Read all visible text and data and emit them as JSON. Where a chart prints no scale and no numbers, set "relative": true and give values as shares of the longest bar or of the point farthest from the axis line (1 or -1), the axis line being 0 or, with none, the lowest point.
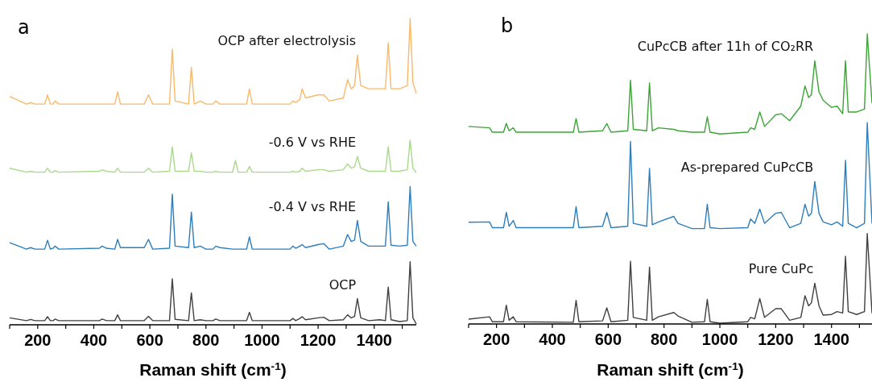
{
  "chart_data": [
    {
      "type": "line",
      "title": "a",
      "xlabel": "Raman shift (cm$^{-1}$)",
      "relative": true,
      "tick_labels": "x",
      "xlim": [
        100,
        1550
      ],
      "xticks": [
        {
          "value": 100,
          "label": null
        },
        200,
        {
          "value": 300,
          "label": null
        },
        400,
        {
          "value": 500,
          "label": null
        },
        600,
        {
          "value": 700,
          "label": null
        },
        800,
        {
          "value": 900,
          "label": null
        },
        1000,
        {
          "value": 1100,
          "label": null
        },
        1200,
        {
          "value": 1300,
          "label": null
        },
        1400,
        {
          "value": 1500,
          "label": null
        }
      ],
      "x": [
        100,
        160,
        175,
        190,
        225,
        235,
        245,
        255,
        262,
        275,
        420,
        430,
        445,
        475,
        485,
        495,
        580,
        595,
        610,
        670,
        680,
        690,
        738,
        748,
        758,
        780,
        800,
        825,
        835,
        850,
        895,
        905,
        915,
        945,
        955,
        965,
        1100,
        1110,
        1120,
        1135,
        1143,
        1155,
        1200,
        1220,
        1240,
        1290,
        1305,
        1318,
        1330,
        1340,
        1352,
        1380,
        1420,
        1440,
        1450,
        1460,
        1490,
        1518,
        1528,
        1538,
        1550
      ],
      "series": [
        {
          "name": "OCP after electrolysis",
          "color": "#f9b96b",
          "values": [
            0.745,
            0.72,
            0.725,
            0.72,
            0.72,
            0.75,
            0.72,
            0.72,
            0.73,
            0.72,
            0.72,
            0.72,
            0.72,
            0.72,
            0.76,
            0.72,
            0.72,
            0.75,
            0.72,
            0.72,
            0.9,
            0.73,
            0.72,
            0.84,
            0.72,
            0.73,
            0.72,
            0.72,
            0.73,
            0.72,
            0.72,
            0.72,
            0.72,
            0.72,
            0.77,
            0.72,
            0.72,
            0.73,
            0.725,
            0.735,
            0.77,
            0.74,
            0.75,
            0.75,
            0.73,
            0.74,
            0.8,
            0.77,
            0.78,
            0.88,
            0.78,
            0.77,
            0.77,
            0.77,
            0.92,
            0.77,
            0.77,
            0.78,
            1.0,
            0.79,
            0.755
          ]
        },
        {
          "name": "-0.6 V vs RHE",
          "color": "#a9d98a",
          "values": [
            0.51,
            0.497,
            0.5,
            0.497,
            0.497,
            0.51,
            0.497,
            0.497,
            0.502,
            0.497,
            0.5,
            0.505,
            0.5,
            0.497,
            0.51,
            0.497,
            0.497,
            0.51,
            0.497,
            0.5,
            0.58,
            0.5,
            0.5,
            0.56,
            0.5,
            0.5,
            0.497,
            0.497,
            0.5,
            0.497,
            0.497,
            0.535,
            0.497,
            0.497,
            0.516,
            0.497,
            0.497,
            0.5,
            0.497,
            0.5,
            0.51,
            0.5,
            0.505,
            0.505,
            0.5,
            0.505,
            0.524,
            0.51,
            0.515,
            0.548,
            0.51,
            0.5,
            0.5,
            0.5,
            0.58,
            0.5,
            0.5,
            0.505,
            0.602,
            0.51,
            0.495
          ]
        },
        {
          "name": "-0.4 V vs RHE",
          "color": "#2e7ebc",
          "values": [
            0.266,
            0.245,
            0.25,
            0.245,
            0.245,
            0.274,
            0.245,
            0.248,
            0.255,
            0.245,
            0.248,
            0.255,
            0.248,
            0.245,
            0.277,
            0.25,
            0.25,
            0.277,
            0.245,
            0.248,
            0.425,
            0.255,
            0.25,
            0.366,
            0.25,
            0.255,
            0.245,
            0.245,
            0.255,
            0.25,
            0.245,
            0.245,
            0.245,
            0.245,
            0.285,
            0.245,
            0.245,
            0.255,
            0.248,
            0.255,
            0.26,
            0.25,
            0.26,
            0.263,
            0.245,
            0.255,
            0.293,
            0.27,
            0.275,
            0.339,
            0.27,
            0.255,
            0.255,
            0.255,
            0.4,
            0.258,
            0.255,
            0.258,
            0.45,
            0.27,
            0.255
          ]
        },
        {
          "name": "OCP",
          "color": "#404040",
          "values": [
            0.02,
            0.011,
            0.015,
            0.011,
            0.011,
            0.024,
            0.011,
            0.011,
            0.016,
            0.011,
            0.011,
            0.016,
            0.011,
            0.011,
            0.03,
            0.011,
            0.011,
            0.025,
            0.011,
            0.011,
            0.148,
            0.015,
            0.011,
            0.102,
            0.011,
            0.014,
            0.011,
            0.011,
            0.016,
            0.011,
            0.011,
            0.011,
            0.011,
            0.011,
            0.038,
            0.011,
            0.011,
            0.018,
            0.011,
            0.018,
            0.024,
            0.014,
            0.02,
            0.022,
            0.011,
            0.014,
            0.03,
            0.02,
            0.025,
            0.083,
            0.02,
            0.011,
            0.014,
            0.011,
            0.121,
            0.014,
            0.008,
            0.011,
            0.204,
            0.02,
            0.0
          ]
        }
      ]
    },
    {
      "type": "line",
      "title": "b",
      "xlabel": "Raman shift (cm$^{-1}$)",
      "relative": true,
      "tick_labels": "x",
      "xlim": [
        100,
        1545
      ],
      "xticks": [
        {
          "value": 100,
          "label": null
        },
        200,
        {
          "value": 300,
          "label": null
        },
        400,
        {
          "value": 500,
          "label": null
        },
        600,
        {
          "value": 700,
          "label": null
        },
        800,
        {
          "value": 900,
          "label": null
        },
        1000,
        {
          "value": 1100,
          "label": null
        },
        1200,
        {
          "value": 1300,
          "label": null
        },
        1400,
        {
          "value": 1500,
          "label": null
        }
      ],
      "x": [
        100,
        175,
        185,
        225,
        235,
        245,
        260,
        270,
        475,
        485,
        495,
        580,
        595,
        610,
        670,
        680,
        690,
        738,
        748,
        758,
        780,
        835,
        850,
        900,
        945,
        955,
        965,
        1000,
        1100,
        1110,
        1125,
        1143,
        1160,
        1200,
        1220,
        1250,
        1290,
        1305,
        1318,
        1328,
        1340,
        1355,
        1370,
        1400,
        1420,
        1440,
        1450,
        1460,
        1490,
        1518,
        1528,
        1545
      ],
      "series": [
        {
          "name": "CuPcCB after 11h of CO₂RR",
          "color": "#3aa535",
          "values": [
            0.68,
            0.675,
            0.66,
            0.66,
            0.69,
            0.665,
            0.675,
            0.66,
            0.66,
            0.707,
            0.66,
            0.665,
            0.69,
            0.66,
            0.665,
            0.84,
            0.67,
            0.665,
            0.83,
            0.665,
            0.675,
            0.67,
            0.665,
            0.66,
            0.66,
            0.713,
            0.66,
            0.654,
            0.66,
            0.675,
            0.67,
            0.73,
            0.68,
            0.72,
            0.724,
            0.7,
            0.75,
            0.82,
            0.78,
            0.79,
            0.907,
            0.8,
            0.77,
            0.746,
            0.75,
            0.724,
            0.907,
            0.73,
            0.73,
            0.74,
            1.0,
            0.76
          ]
        },
        {
          "name": "As-prepared CuPcCB",
          "color": "#2e7ebc",
          "values": [
            0.349,
            0.35,
            0.33,
            0.33,
            0.383,
            0.335,
            0.355,
            0.33,
            0.33,
            0.403,
            0.33,
            0.335,
            0.383,
            0.33,
            0.335,
            0.628,
            0.345,
            0.335,
            0.535,
            0.34,
            0.35,
            0.369,
            0.345,
            0.327,
            0.327,
            0.411,
            0.33,
            0.327,
            0.33,
            0.36,
            0.345,
            0.394,
            0.345,
            0.38,
            0.383,
            0.33,
            0.345,
            0.411,
            0.37,
            0.38,
            0.49,
            0.38,
            0.35,
            0.34,
            0.35,
            0.335,
            0.563,
            0.345,
            0.33,
            0.345,
            0.693,
            0.344
          ]
        },
        {
          "name": "Pure CuPc",
          "color": "#404040",
          "values": [
            0.014,
            0.022,
            0.005,
            0.005,
            0.062,
            0.01,
            0.022,
            0.005,
            0.003,
            0.079,
            0.005,
            0.008,
            0.053,
            0.005,
            0.01,
            0.214,
            0.02,
            0.01,
            0.194,
            0.01,
            0.022,
            0.037,
            0.025,
            0.003,
            0.005,
            0.082,
            0.005,
            0.0,
            0.005,
            0.02,
            0.015,
            0.085,
            0.02,
            0.05,
            0.05,
            0.01,
            0.02,
            0.095,
            0.06,
            0.07,
            0.138,
            0.06,
            0.028,
            0.03,
            0.04,
            0.035,
            0.231,
            0.04,
            0.03,
            0.04,
            0.31,
            0.034
          ]
        }
      ]
    }
  ]
}
